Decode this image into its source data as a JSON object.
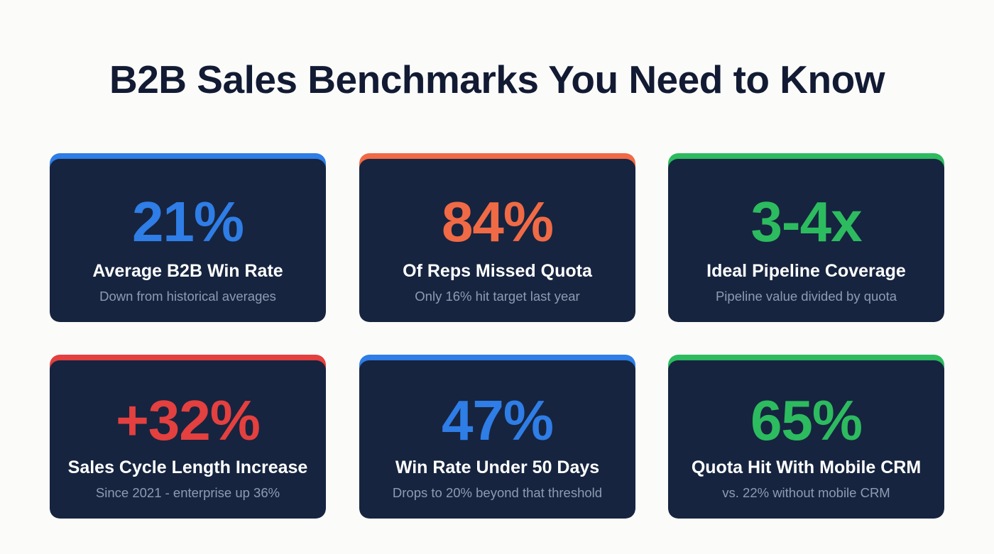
{
  "header": {
    "title": "B2B Sales Benchmarks You Need to Know"
  },
  "colors": {
    "background": "#fbfbfa",
    "title": "#121b33",
    "card_body": "#16243f",
    "label": "#ffffff",
    "note": "#8e9bb2",
    "blue": "#2f7de6",
    "orange": "#f06a45",
    "green": "#2dbb5f",
    "red": "#e3403f"
  },
  "cards": [
    {
      "value": "21%",
      "label": "Average B2B Win Rate",
      "note": "Down from historical averages",
      "accent": "blue"
    },
    {
      "value": "84%",
      "label": "Of Reps Missed Quota",
      "note": "Only 16% hit target last year",
      "accent": "orange"
    },
    {
      "value": "3-4x",
      "label": "Ideal Pipeline Coverage",
      "note": "Pipeline value divided by quota",
      "accent": "green"
    },
    {
      "value": "+32%",
      "label": "Sales Cycle Length Increase",
      "note": "Since 2021 - enterprise up 36%",
      "accent": "red"
    },
    {
      "value": "47%",
      "label": "Win Rate Under 50 Days",
      "note": "Drops to 20% beyond that threshold",
      "accent": "blue"
    },
    {
      "value": "65%",
      "label": "Quota Hit With Mobile CRM",
      "note": "vs. 22% without mobile CRM",
      "accent": "green"
    }
  ]
}
